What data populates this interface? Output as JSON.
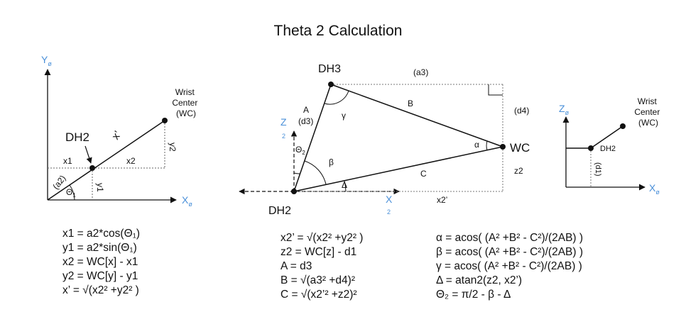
{
  "title": "Theta 2 Calculation",
  "colors": {
    "axis_label": "#4a90d9",
    "line": "#111111",
    "dotted": "#777777"
  },
  "left_diagram": {
    "y_axis": "Y",
    "y_axis_sub": "ø",
    "x_axis": "X",
    "x_axis_sub": "ø",
    "wc_label_lines": [
      "Wrist",
      "Center",
      "(WC)"
    ],
    "dh2_label": "DH2",
    "x_prime": "x’",
    "x1": "x1",
    "x2": "x2",
    "y1": "y1",
    "y2": "y2",
    "a2": "(a2)",
    "theta": "Θ",
    "theta_sub": "1"
  },
  "middle_diagram": {
    "dh3": "DH3",
    "dh2": "DH2",
    "wc": "WC",
    "a3": "(a3)",
    "d4": "(d4)",
    "a": "A",
    "d3": "(d3)",
    "b": "B",
    "c": "C",
    "z2": "z2",
    "x2p": "x2’",
    "gamma": "γ",
    "alpha": "α",
    "beta": "β",
    "delta": "Δ",
    "theta2": "Θ",
    "theta2_sub": "2",
    "z_axis": "Z",
    "z_axis_sub": "2",
    "x_axis": "X",
    "x_axis_sub": "2"
  },
  "right_diagram": {
    "z_axis": "Z",
    "z_axis_sub": "ø",
    "x_axis": "X",
    "x_axis_sub": "ø",
    "wc_label_lines": [
      "Wrist",
      "Center",
      "(WC)"
    ],
    "dh2": "DH2",
    "d1": "(d1)"
  },
  "equations_left": [
    "x1 = a2*cos(Θ₁)",
    "y1 = a2*sin(Θ₁)",
    "x2 = WC[x] - x1",
    "y2 = WC[y] - y1",
    "x’ = √(x2² +y2² )"
  ],
  "equations_middle": [
    "x2’ = √(x2² +y2² )",
    "z2 = WC[z] - d1",
    "A = d3",
    "B = √(a3² +d4)²",
    "C = √(x2’² +z2)²"
  ],
  "equations_right": [
    "α = acos( (A² +B² - C²)/(2AB) )",
    "β = acos( (A² +B² - C²)/(2AB) )",
    "γ = acos( (A² +B² - C²)/(2AB) )",
    "Δ = atan2(z2, x2’)",
    "Θ₂ = π/2 - β - Δ"
  ]
}
